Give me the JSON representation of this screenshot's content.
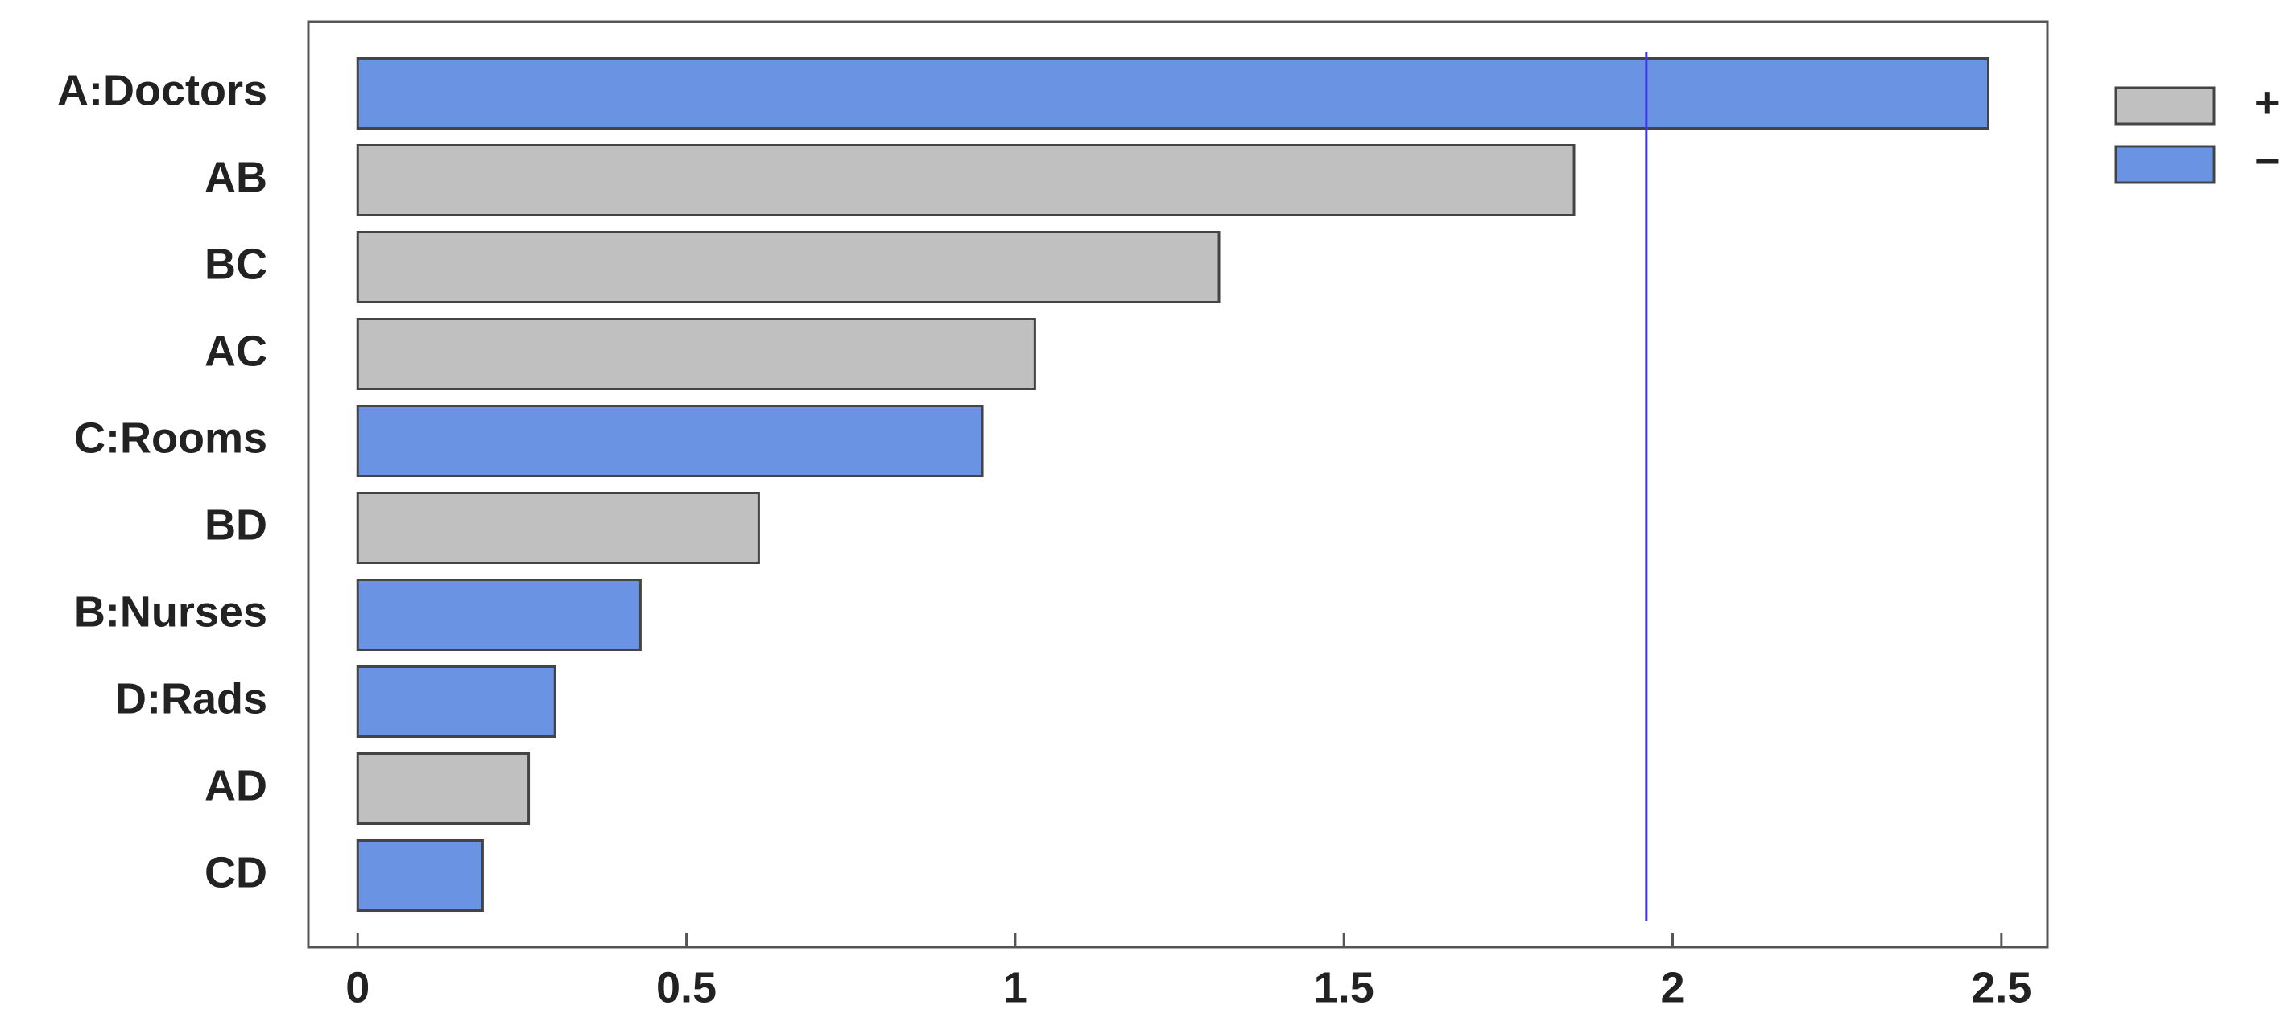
{
  "chart_data": {
    "type": "bar",
    "orientation": "horizontal",
    "categories": [
      "A:Doctors",
      "AB",
      "BC",
      "AC",
      "C:Rooms",
      "BD",
      "B:Nurses",
      "D:Rads",
      "AD",
      "CD"
    ],
    "series": [
      {
        "name": "+",
        "color": "#c0c0c0",
        "values": [
          null,
          1.85,
          1.31,
          1.03,
          null,
          0.61,
          null,
          null,
          0.26,
          null
        ]
      },
      {
        "name": "−",
        "color": "#6b93e3",
        "values": [
          2.48,
          null,
          null,
          null,
          0.95,
          null,
          0.43,
          0.3,
          null,
          0.19
        ]
      }
    ],
    "reference_line": {
      "value": 1.96,
      "color": "#3a3ae0"
    },
    "xlim": [
      -0.075,
      2.57
    ],
    "xticks": [
      0,
      0.5,
      1,
      1.5,
      2,
      2.5
    ],
    "legend": "top-right"
  }
}
